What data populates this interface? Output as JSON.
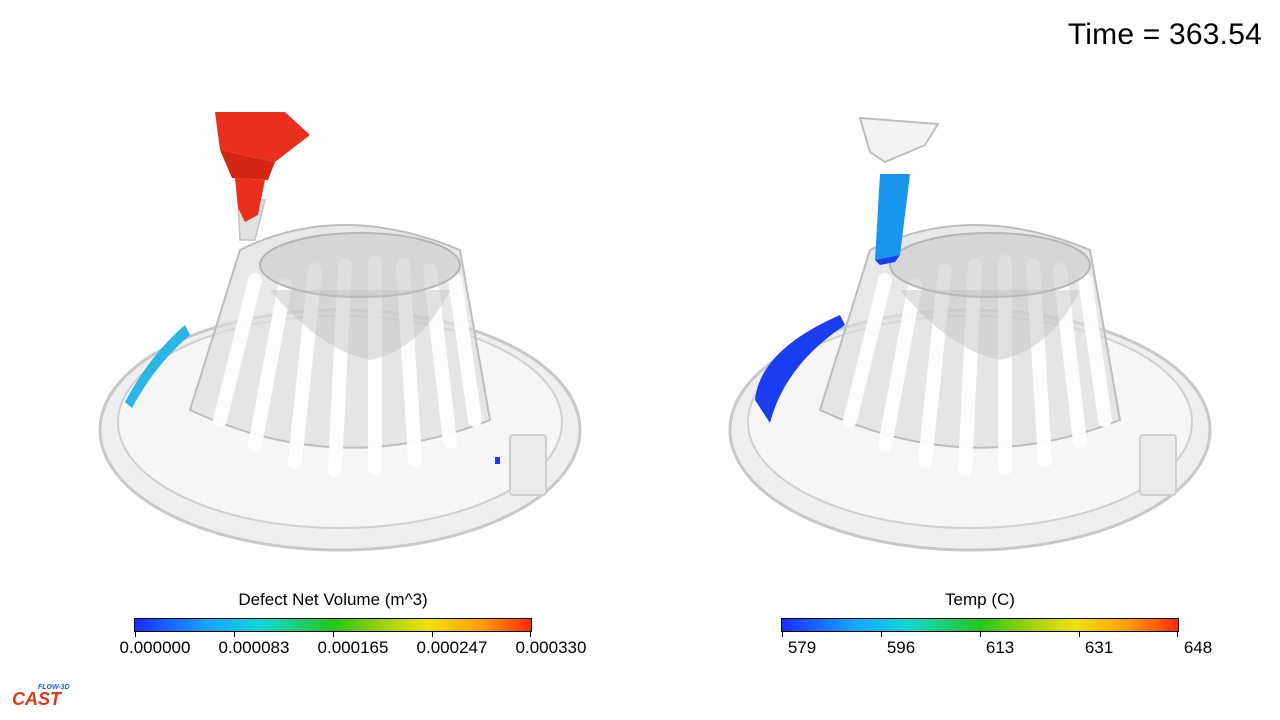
{
  "time_label": "Time = 363.54",
  "left_legend": {
    "title": "Defect Net Volume (m^3)",
    "ticks": [
      "0.000000",
      "0.000083",
      "0.000165",
      "0.000247",
      "0.000330"
    ]
  },
  "right_legend": {
    "title": "Temp (C)",
    "ticks": [
      "579",
      "596",
      "613",
      "631",
      "648"
    ]
  },
  "logo": {
    "small": "FLOW-3D",
    "big": "CAST"
  },
  "colors": {
    "hot": "#e8301c",
    "defect_blue": "#2bb6e6",
    "cold_blue": "#1b3df0",
    "mold": "#d9d9d9"
  }
}
